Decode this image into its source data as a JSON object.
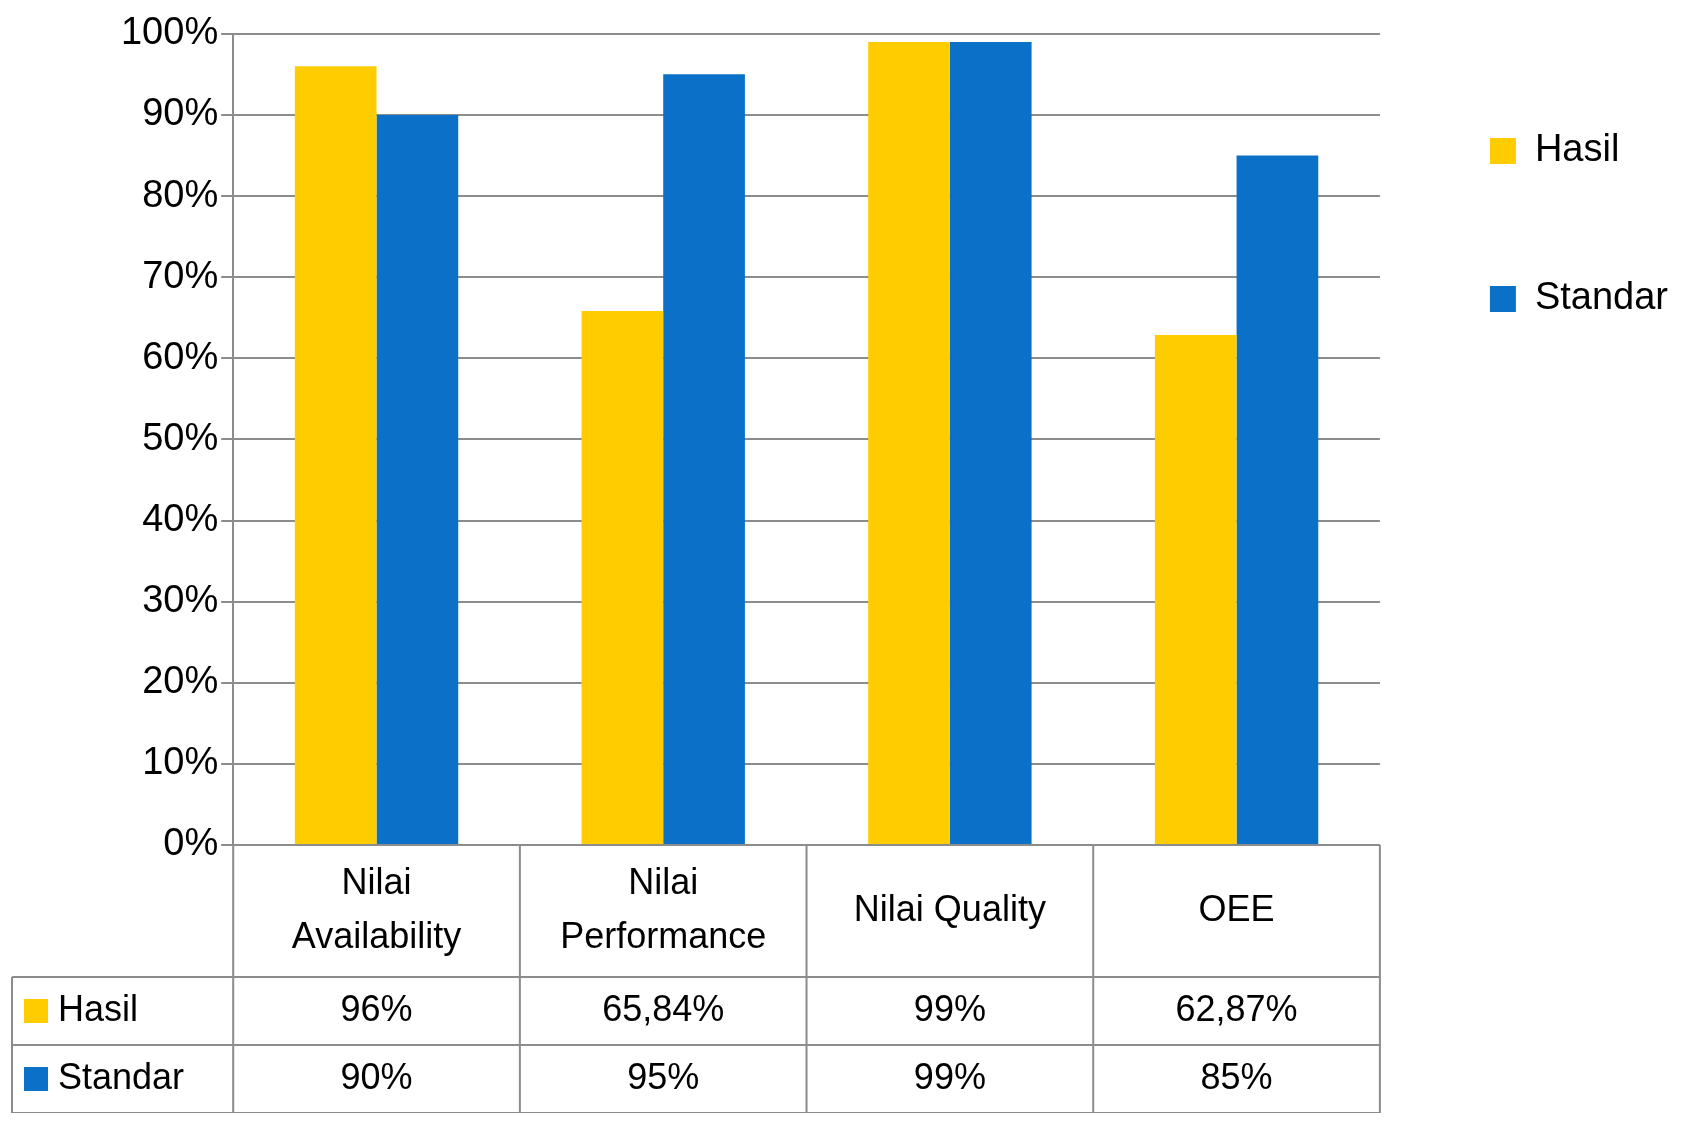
{
  "chart_data": {
    "type": "bar",
    "categories": [
      "Nilai Availability",
      "Nilai Performance",
      "Nilai Quality",
      "OEE"
    ],
    "series": [
      {
        "name": "Hasil",
        "color": "#ffcc00",
        "values": [
          96,
          65.84,
          99,
          62.87
        ],
        "value_labels": [
          "96%",
          "65,84%",
          "99%",
          "62,87%"
        ]
      },
      {
        "name": "Standar",
        "color": "#0a70c8",
        "values": [
          90,
          95,
          99,
          85
        ],
        "value_labels": [
          "90%",
          "95%",
          "99%",
          "85%"
        ]
      }
    ],
    "ylim": [
      0,
      100
    ],
    "yticks": [
      {
        "value": 0,
        "label": "0%"
      },
      {
        "value": 10,
        "label": "10%"
      },
      {
        "value": 20,
        "label": "20%"
      },
      {
        "value": 30,
        "label": "30%"
      },
      {
        "value": 40,
        "label": "40%"
      },
      {
        "value": 50,
        "label": "50%"
      },
      {
        "value": 60,
        "label": "60%"
      },
      {
        "value": 70,
        "label": "70%"
      },
      {
        "value": 80,
        "label": "80%"
      },
      {
        "value": 90,
        "label": "90%"
      },
      {
        "value": 100,
        "label": "100%"
      }
    ],
    "grid": "y",
    "legend": "right"
  }
}
